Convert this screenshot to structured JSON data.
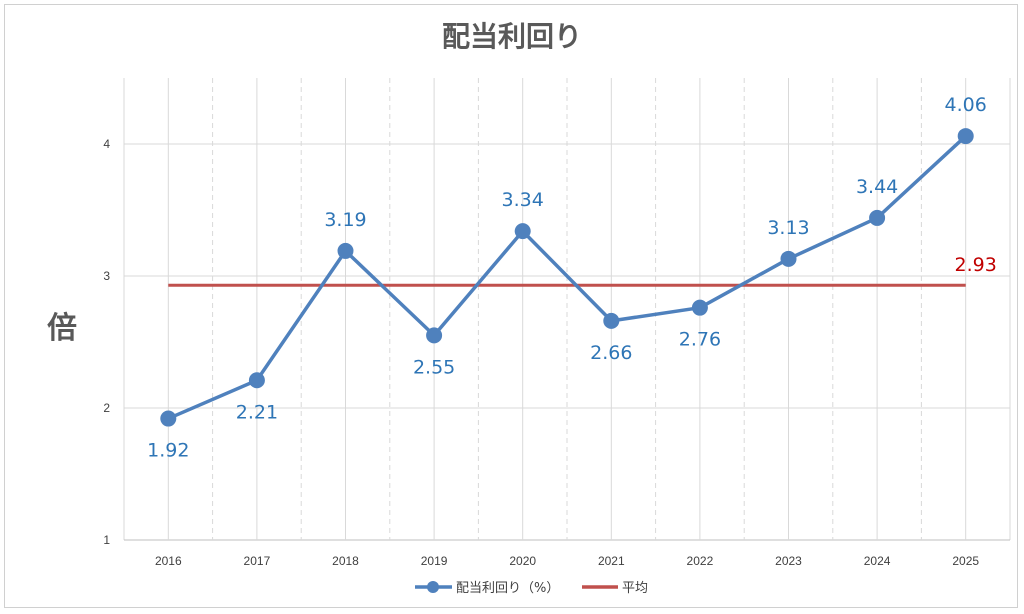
{
  "chart_data": {
    "type": "line",
    "title": "配当利回り",
    "ylabel": "倍",
    "xlabel": "",
    "categories": [
      "2016",
      "2017",
      "2018",
      "2019",
      "2020",
      "2021",
      "2022",
      "2023",
      "2024",
      "2025"
    ],
    "ylim": [
      1,
      4.5
    ],
    "yticks": [
      "1",
      "2",
      "3",
      "4"
    ],
    "grid": true,
    "legend_position": "bottom",
    "series": [
      {
        "name": "配当利回り（%）",
        "values": [
          1.92,
          2.21,
          3.19,
          2.55,
          3.34,
          2.66,
          2.76,
          3.13,
          3.44,
          4.06
        ],
        "labels": [
          "1.92",
          "2.21",
          "3.19",
          "2.55",
          "3.34",
          "2.66",
          "2.76",
          "3.13",
          "3.44",
          "4.06"
        ],
        "label_positions": [
          "below",
          "below",
          "above",
          "below",
          "above",
          "below",
          "below",
          "above",
          "above",
          "above"
        ],
        "color": "#4f81bd"
      },
      {
        "name": "平均",
        "values": [
          2.93,
          2.93,
          2.93,
          2.93,
          2.93,
          2.93,
          2.93,
          2.93,
          2.93,
          2.93
        ],
        "end_label": "2.93",
        "color": "#c0504d"
      }
    ]
  }
}
